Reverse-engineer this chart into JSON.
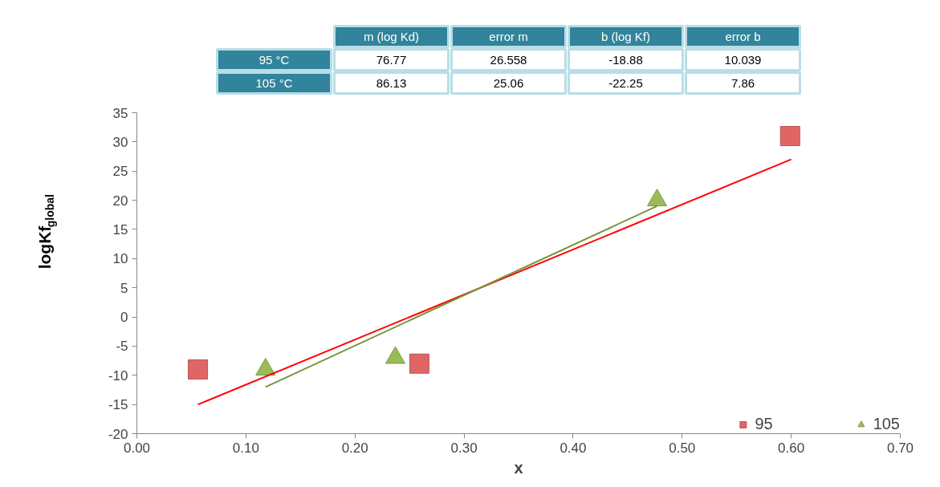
{
  "chart_data": {
    "type": "scatter",
    "xlabel": "x",
    "ylabel": "logKf$_{global}$",
    "annotations": [
      "m (log Kd)",
      "error m",
      "b (log Kf)",
      "error b",
      "95 °C",
      "76.77",
      "26.558",
      "-18.88",
      "10.039",
      "105 °C",
      "86.13",
      "25.06",
      "-22.25",
      "7.86"
    ],
    "series": [
      {
        "name": "95",
        "color": "#e06666",
        "marker": "square",
        "x": [
          0.056,
          0.259,
          0.599
        ],
        "values": [
          -9,
          -8,
          31
        ]
      },
      {
        "name": "105",
        "color": "#9bbb59",
        "marker": "triangle",
        "x": [
          0.118,
          0.237,
          0.477
        ],
        "values": [
          -9,
          -7,
          20
        ]
      },
      {
        "type": "line",
        "color": "#ff0000",
        "marker": "none",
        "x": [
          0.056,
          0.6
        ],
        "values": [
          -15,
          27
        ]
      },
      {
        "type": "line",
        "color": "#77933c",
        "marker": "none",
        "x": [
          0.118,
          0.477
        ],
        "values": [
          -12,
          19
        ]
      }
    ],
    "xlim": [
      0,
      0.7
    ],
    "ylim": [
      -20,
      35
    ],
    "xticks": [
      {
        "value": 0,
        "label": "0.00"
      },
      {
        "value": 0.1,
        "label": "0.10"
      },
      {
        "value": 0.2,
        "label": "0.20"
      },
      {
        "value": 0.3,
        "label": "0.30"
      },
      {
        "value": 0.4,
        "label": "0.40"
      },
      {
        "value": 0.5,
        "label": "0.50"
      },
      {
        "value": 0.6,
        "label": "0.60"
      },
      {
        "value": 0.7,
        "label": "0.70"
      }
    ],
    "yticks": [
      -20,
      -15,
      -10,
      -5,
      0,
      5,
      10,
      15,
      20,
      25,
      30,
      35
    ],
    "grid": false,
    "legend": "bottom right"
  }
}
